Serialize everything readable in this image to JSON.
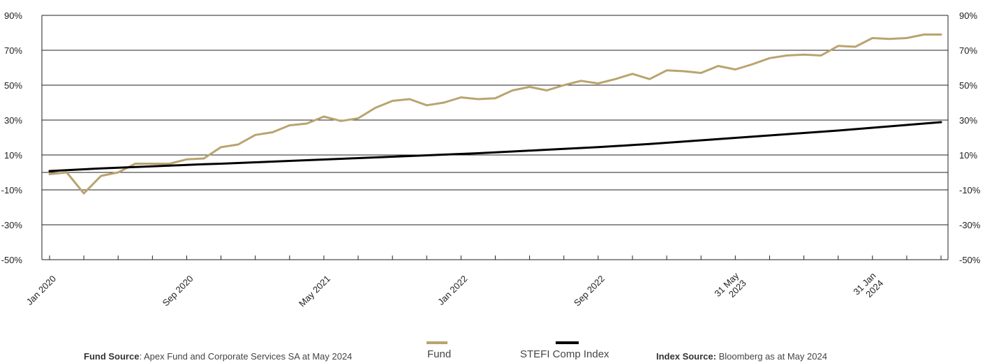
{
  "chart_data": {
    "type": "line",
    "x_tick_labels": [
      [
        "Jan 2020"
      ],
      [
        "Sep 2020"
      ],
      [
        "May 2021"
      ],
      [
        "Jan 2022"
      ],
      [
        "Sep 2022"
      ],
      [
        "31 May",
        "2023"
      ],
      [
        "31 Jan",
        "2024"
      ]
    ],
    "x_tick_label_index": [
      0,
      8,
      16,
      24,
      32,
      40,
      48
    ],
    "n_periods": 53,
    "ylim": [
      -50,
      90
    ],
    "y_ticks": [
      "90%",
      "70%",
      "50%",
      "30%",
      "10%",
      "-10%",
      "-30%",
      "-50%"
    ],
    "y_tick_values": [
      90,
      70,
      50,
      30,
      10,
      -10,
      -30,
      -50
    ],
    "grid": true,
    "colors": {
      "fund": "#b9a46f",
      "index": "#000000"
    },
    "series": [
      {
        "name": "Fund",
        "values": [
          -1,
          0,
          -12,
          -2,
          0,
          5,
          5,
          5,
          7.5,
          8,
          14.5,
          16,
          21.5,
          23,
          27,
          28,
          32,
          29.5,
          31,
          37,
          41,
          42,
          38.5,
          40,
          43,
          42,
          42.5,
          47,
          49,
          47,
          50,
          52.5,
          51,
          53.5,
          56.5,
          53.5,
          58.5,
          58,
          57,
          61,
          59,
          62,
          65.5,
          67,
          67.5,
          67,
          72.5,
          72,
          77,
          76.5,
          77,
          79,
          79
        ]
      },
      {
        "name": "STEFI Comp Index",
        "values": [
          0.8,
          1.3,
          1.8,
          2.3,
          2.7,
          3.1,
          3.5,
          3.9,
          4.3,
          4.7,
          5.0,
          5.4,
          5.8,
          6.2,
          6.6,
          7.0,
          7.4,
          7.8,
          8.2,
          8.6,
          9.0,
          9.4,
          9.8,
          10.2,
          10.6,
          11.0,
          11.5,
          12.0,
          12.5,
          13.0,
          13.5,
          14.0,
          14.5,
          15.1,
          15.7,
          16.3,
          17.0,
          17.7,
          18.4,
          19.1,
          19.8,
          20.5,
          21.2,
          21.9,
          22.6,
          23.3,
          24.0,
          24.8,
          25.6,
          26.4,
          27.2,
          28.0,
          28.8
        ]
      }
    ]
  },
  "legend": {
    "fund": "Fund",
    "index": "STEFI Comp Index"
  },
  "footer": {
    "fund_source_label": "Fund Source",
    "fund_source_text": ": Apex Fund and Corporate Services SA at May 2024",
    "index_source_label": "Index Source:",
    "index_source_text": " Bloomberg as at May 2024"
  }
}
